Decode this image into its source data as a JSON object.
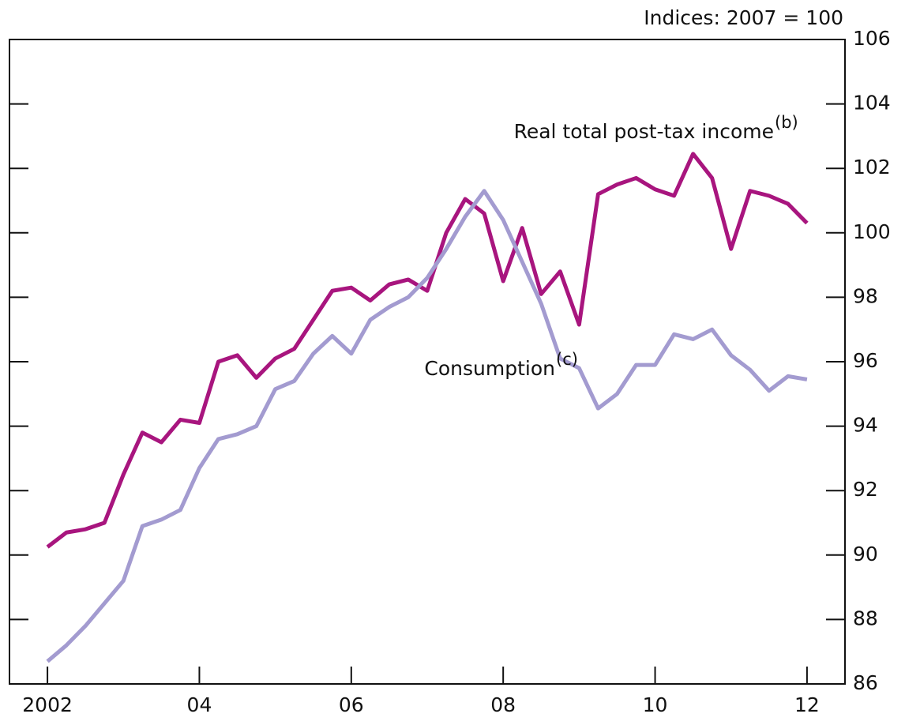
{
  "chart_data": {
    "type": "line",
    "unit_label": "Indices:  2007 = 100",
    "x": [
      2002,
      2002.25,
      2002.5,
      2002.75,
      2003,
      2003.25,
      2003.5,
      2003.75,
      2004,
      2004.25,
      2004.5,
      2004.75,
      2005,
      2005.25,
      2005.5,
      2005.75,
      2006,
      2006.25,
      2006.5,
      2006.75,
      2007,
      2007.25,
      2007.5,
      2007.75,
      2008,
      2008.25,
      2008.5,
      2008.75,
      2009,
      2009.25,
      2009.5,
      2009.75,
      2010,
      2010.25,
      2010.5,
      2010.75,
      2011,
      2011.25,
      2011.5,
      2011.75,
      2012
    ],
    "series": [
      {
        "name": "Real total post-tax income",
        "note": "(b)",
        "color": "#a8157e",
        "values": [
          90.25,
          90.7,
          90.8,
          91.0,
          92.5,
          93.8,
          93.5,
          94.2,
          94.1,
          96.0,
          96.2,
          95.5,
          96.1,
          96.4,
          97.3,
          98.2,
          98.3,
          97.9,
          98.4,
          98.55,
          98.2,
          100.0,
          101.05,
          100.6,
          98.5,
          100.15,
          98.1,
          98.8,
          97.15,
          101.2,
          101.5,
          101.7,
          101.35,
          101.15,
          102.45,
          101.7,
          99.5,
          101.3,
          101.15,
          100.9,
          100.3
        ]
      },
      {
        "name": "Consumption",
        "note": "(c)",
        "color": "#a39bd0",
        "values": [
          86.7,
          87.2,
          87.8,
          88.5,
          89.2,
          90.9,
          91.1,
          91.4,
          92.7,
          93.6,
          93.75,
          94.0,
          95.15,
          95.4,
          96.25,
          96.8,
          96.25,
          97.3,
          97.7,
          98.0,
          98.6,
          99.5,
          100.5,
          101.3,
          100.4,
          99.1,
          97.8,
          96.1,
          95.8,
          94.55,
          95.0,
          95.9,
          95.9,
          96.85,
          96.7,
          97.0,
          96.2,
          95.75,
          95.1,
          95.55,
          95.45
        ]
      }
    ],
    "xlim": [
      2001.5,
      2012.5
    ],
    "xticks": [
      2002,
      {
        "value": 2004,
        "label": "04"
      },
      {
        "value": 2006,
        "label": "06"
      },
      {
        "value": 2008,
        "label": "08"
      },
      {
        "value": 2010,
        "label": "10"
      },
      {
        "value": 2012,
        "label": "12"
      }
    ],
    "ylim": [
      86,
      106
    ],
    "yticks": [
      86,
      88,
      90,
      92,
      94,
      96,
      98,
      100,
      102,
      104,
      106
    ],
    "grid": false
  }
}
